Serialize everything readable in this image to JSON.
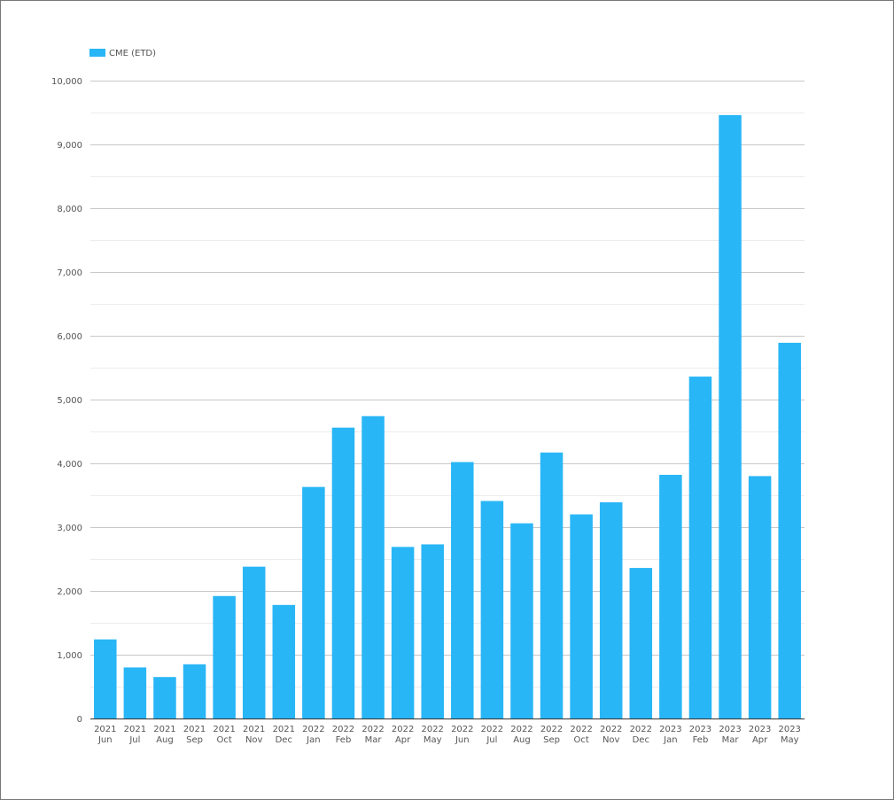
{
  "chart_data": {
    "type": "bar",
    "title": "",
    "xlabel": "",
    "ylabel": "",
    "ylim": [
      0,
      10000
    ],
    "yticks": [
      "0",
      "1,000",
      "2,000",
      "3,000",
      "4,000",
      "5,000",
      "6,000",
      "7,000",
      "8,000",
      "9,000",
      "10,000"
    ],
    "ytick_values": [
      0,
      1000,
      2000,
      3000,
      4000,
      5000,
      6000,
      7000,
      8000,
      9000,
      10000
    ],
    "grid": true,
    "legend_position": "top-left",
    "categories": [
      {
        "year": "2021",
        "month": "Jun"
      },
      {
        "year": "2021",
        "month": "Jul"
      },
      {
        "year": "2021",
        "month": "Aug"
      },
      {
        "year": "2021",
        "month": "Sep"
      },
      {
        "year": "2021",
        "month": "Oct"
      },
      {
        "year": "2021",
        "month": "Nov"
      },
      {
        "year": "2021",
        "month": "Dec"
      },
      {
        "year": "2022",
        "month": "Jan"
      },
      {
        "year": "2022",
        "month": "Feb"
      },
      {
        "year": "2022",
        "month": "Mar"
      },
      {
        "year": "2022",
        "month": "Apr"
      },
      {
        "year": "2022",
        "month": "May"
      },
      {
        "year": "2022",
        "month": "Jun"
      },
      {
        "year": "2022",
        "month": "Jul"
      },
      {
        "year": "2022",
        "month": "Aug"
      },
      {
        "year": "2022",
        "month": "Sep"
      },
      {
        "year": "2022",
        "month": "Oct"
      },
      {
        "year": "2022",
        "month": "Nov"
      },
      {
        "year": "2022",
        "month": "Dec"
      },
      {
        "year": "2023",
        "month": "Jan"
      },
      {
        "year": "2023",
        "month": "Feb"
      },
      {
        "year": "2023",
        "month": "Mar"
      },
      {
        "year": "2023",
        "month": "Apr"
      },
      {
        "year": "2023",
        "month": "May"
      }
    ],
    "series": [
      {
        "name": "CME (ETD)",
        "color": "#29b6f6",
        "values": [
          1240,
          800,
          650,
          850,
          1920,
          2380,
          1780,
          3630,
          4560,
          4740,
          2690,
          2730,
          4020,
          3410,
          3060,
          4170,
          3200,
          3390,
          2360,
          3820,
          5360,
          9460,
          3800,
          5890
        ]
      }
    ]
  }
}
